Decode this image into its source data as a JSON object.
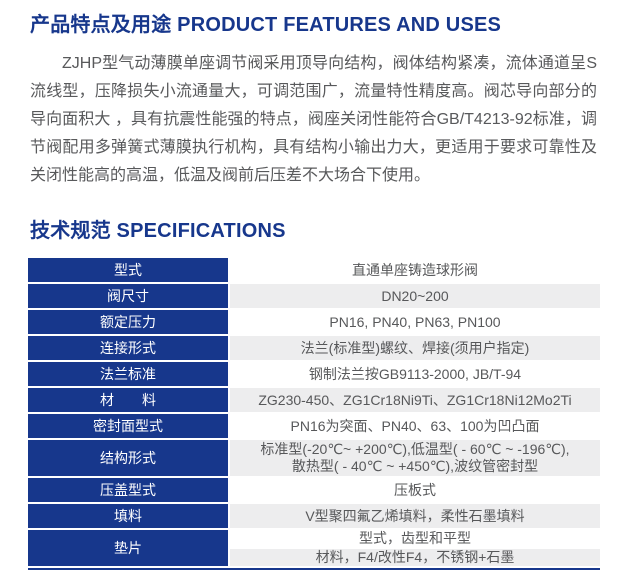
{
  "colors": {
    "navy": "#17378c",
    "row_alt_bg": "#ededee",
    "body_text": "#58595b",
    "label_text": "#ffffff"
  },
  "features_section": {
    "title": "产品特点及用途 PRODUCT FEATURES AND USES",
    "paragraph": "ZJHP型气动薄膜单座调节阀采用顶导向结构，阀体结构紧凑，流体通道呈S流线型，压降损失小流通量大，可调范围广，流量特性精度高。阀芯导向部分的导向面积大 ，具有抗震性能强的特点，阀座关闭性能符合GB/T4213-92标准，调节阀配用多弹簧式薄膜执行机构，具有结构小输出力大，更适用于要求可靠性及关闭性能高的高温，低温及阀前后压差不大场合下使用。"
  },
  "specs_section": {
    "title": "技术规范 SPECIFICATIONS"
  },
  "spec_table": {
    "rows": [
      {
        "label": "型式",
        "value": "直通单座铸造球形阀"
      },
      {
        "label": "阀尺寸",
        "value": "DN20~200"
      },
      {
        "label": "额定压力",
        "value": "PN16, PN40, PN63, PN100"
      },
      {
        "label": "连接形式",
        "value": "法兰(标准型)螺纹、焊接(须用户指定)"
      },
      {
        "label": "法兰标准",
        "value": "钢制法兰按GB9113-2000, JB/T-94"
      },
      {
        "label": "材　　料",
        "value": "ZG230-450、ZG1Cr18Ni9Ti、ZG1Cr18Ni12Mo2Ti"
      },
      {
        "label": "密封面型式",
        "value": "PN16为突面、PN40、63、100为凹凸面"
      },
      {
        "label": "结构形式",
        "value_line1": "标准型(-20℃~ +200℃),低温型( - 60℃ ~ -196℃),",
        "value_line2": "散热型( - 40℃ ~ +450℃),波纹管密封型"
      },
      {
        "label": "压盖型式",
        "value": "压板式"
      },
      {
        "label": "填料",
        "value": "V型聚四氟乙烯填料，柔性石墨填料"
      },
      {
        "label": "垫片",
        "value1": "型式，齿型和平型",
        "value2": "材料，F4/改性F4，不锈钢+石墨"
      }
    ]
  }
}
